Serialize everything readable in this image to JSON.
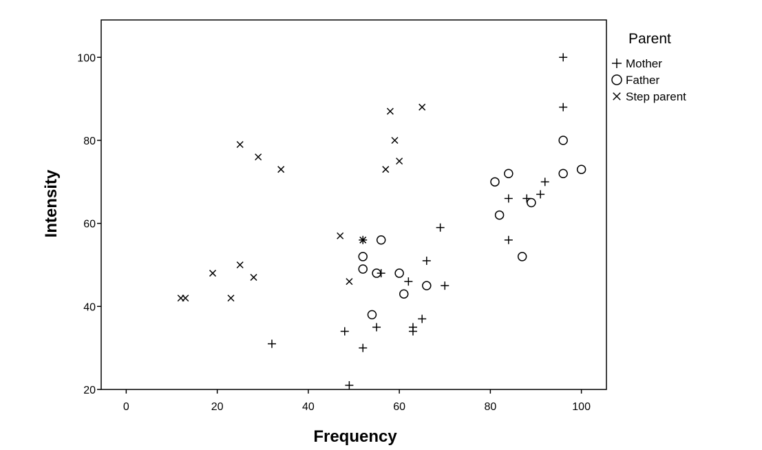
{
  "chart_data": {
    "type": "scatter",
    "xlabel": "Frequency",
    "ylabel": "Intensity",
    "xlim": [
      -5.5,
      105.5
    ],
    "ylim": [
      20,
      109
    ],
    "xticks": [
      0,
      20,
      40,
      60,
      80,
      100
    ],
    "yticks": [
      20,
      40,
      60,
      80,
      100
    ],
    "grid": false,
    "legend": {
      "title": "Parent",
      "position": "right"
    },
    "series": [
      {
        "name": "Mother",
        "marker": "plus",
        "points": [
          [
            96,
            100
          ],
          [
            96,
            88
          ],
          [
            92,
            70
          ],
          [
            91,
            67
          ],
          [
            88,
            66
          ],
          [
            84,
            66
          ],
          [
            84,
            56
          ],
          [
            69,
            59
          ],
          [
            66,
            51
          ],
          [
            70,
            45
          ],
          [
            62,
            46
          ],
          [
            56,
            48
          ],
          [
            65,
            37
          ],
          [
            63,
            35
          ],
          [
            63,
            34
          ],
          [
            55,
            35
          ],
          [
            52,
            56
          ],
          [
            48,
            34
          ],
          [
            52,
            30
          ],
          [
            32,
            31
          ],
          [
            49,
            21
          ]
        ]
      },
      {
        "name": "Father",
        "marker": "circle",
        "points": [
          [
            96,
            80
          ],
          [
            100,
            73
          ],
          [
            96,
            72
          ],
          [
            84,
            72
          ],
          [
            81,
            70
          ],
          [
            89,
            65
          ],
          [
            82,
            62
          ],
          [
            87,
            52
          ],
          [
            56,
            56
          ],
          [
            52,
            52
          ],
          [
            52,
            49
          ],
          [
            55,
            48
          ],
          [
            60,
            48
          ],
          [
            66,
            45
          ],
          [
            61,
            43
          ],
          [
            54,
            38
          ]
        ]
      },
      {
        "name": "Step parent",
        "marker": "x",
        "points": [
          [
            65,
            88
          ],
          [
            58,
            87
          ],
          [
            59,
            80
          ],
          [
            60,
            75
          ],
          [
            57,
            73
          ],
          [
            25,
            79
          ],
          [
            29,
            76
          ],
          [
            34,
            73
          ],
          [
            47,
            57
          ],
          [
            52,
            56
          ],
          [
            49,
            46
          ],
          [
            19,
            48
          ],
          [
            25,
            50
          ],
          [
            28,
            47
          ],
          [
            23,
            42
          ],
          [
            12,
            42
          ],
          [
            13,
            42
          ]
        ]
      }
    ]
  }
}
